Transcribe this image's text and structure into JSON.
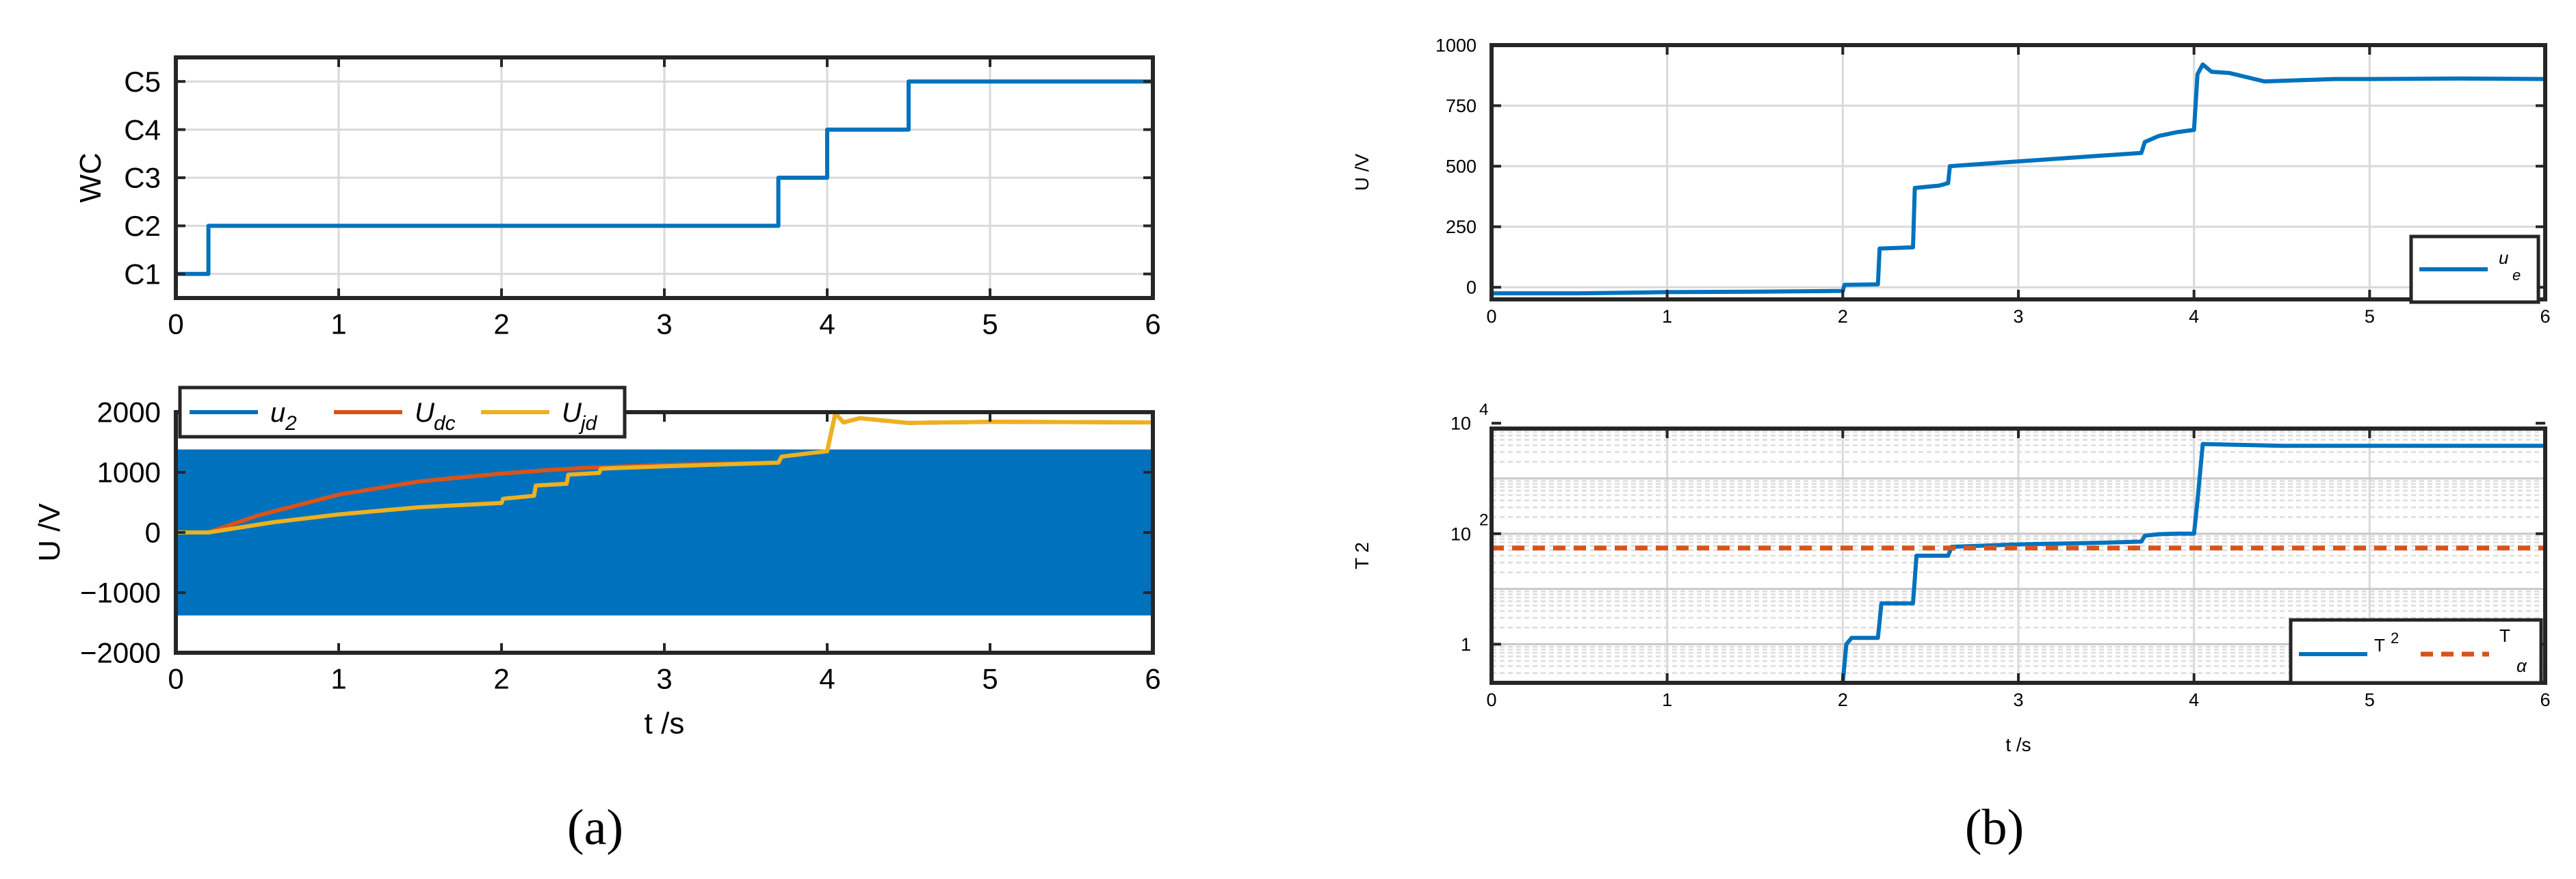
{
  "panel_labels": [
    "(a)",
    "(b)"
  ],
  "chart_data": [
    {
      "id": "a1",
      "type": "line",
      "xlabel": "",
      "ylabel": "WC",
      "xlim": [
        0,
        6
      ],
      "ylim": [
        0.5,
        5.5
      ],
      "x_ticks": [
        "0",
        "1",
        "2",
        "3",
        "4",
        "5",
        "6"
      ],
      "y_ticks": [
        1,
        2,
        3,
        4,
        5
      ],
      "y_tick_labels": [
        "C1",
        "C2",
        "C3",
        "C4",
        "C5"
      ],
      "grid": true,
      "series": [
        {
          "color": "#0072BD",
          "x": [
            0,
            0.2,
            0.2,
            3.7,
            3.7,
            4.0,
            4.0,
            4.5,
            4.5,
            6.0
          ],
          "y": [
            1,
            1,
            2,
            2,
            3,
            3,
            4,
            4,
            5,
            5
          ]
        }
      ]
    },
    {
      "id": "a2",
      "type": "line",
      "xlabel": "t /s",
      "ylabel": "U /V",
      "xlim": [
        0,
        6
      ],
      "ylim": [
        -2000,
        2000
      ],
      "x_ticks": [
        "0",
        "1",
        "2",
        "3",
        "4",
        "5",
        "6"
      ],
      "y_ticks": [
        -2000,
        -1000,
        0,
        1000,
        2000
      ],
      "y_tick_labels": [
        "−2000",
        "−1000",
        "0",
        "1000",
        "2000"
      ],
      "grid": false,
      "legend": {
        "placement": "top-left",
        "orientation": "horizontal",
        "entries": [
          {
            "main": "u",
            "sub": "2",
            "color": "#0072BD"
          },
          {
            "main": "U",
            "sub": "dc",
            "color": "#D95319"
          },
          {
            "main": "U",
            "sub": "jd",
            "color": "#EDB120"
          }
        ]
      },
      "band": {
        "series": "u2",
        "color": "#0072BD",
        "x": [
          0,
          6
        ],
        "amplitude": 1380
      },
      "series": [
        {
          "name": "U_dc",
          "color": "#D95319",
          "x": [
            0,
            0.2,
            0.5,
            1.0,
            1.5,
            2.0,
            2.3,
            2.5,
            3.0,
            3.7,
            3.72,
            3.9,
            4.0,
            4.05,
            4.1,
            4.2,
            4.5,
            5.0,
            6.0
          ],
          "y": [
            0,
            0,
            280,
            630,
            850,
            980,
            1040,
            1070,
            1120,
            1160,
            1260,
            1320,
            1350,
            1980,
            1830,
            1900,
            1820,
            1840,
            1830
          ]
        },
        {
          "name": "U_jd",
          "color": "#EDB120",
          "x": [
            0,
            0.2,
            0.6,
            1.0,
            1.5,
            2.0,
            2.01,
            2.2,
            2.21,
            2.4,
            2.41,
            2.6,
            2.61,
            3.0,
            3.7,
            3.72,
            3.9,
            4.0,
            4.05,
            4.1,
            4.2,
            4.5,
            5.0,
            6.0
          ],
          "y": [
            0,
            0,
            170,
            300,
            420,
            490,
            560,
            610,
            780,
            810,
            960,
            990,
            1060,
            1100,
            1160,
            1260,
            1320,
            1350,
            1980,
            1830,
            1900,
            1820,
            1840,
            1830
          ]
        }
      ]
    },
    {
      "id": "b1",
      "type": "line",
      "xlabel": "",
      "ylabel": "U /V",
      "xlim": [
        0,
        6
      ],
      "ylim": [
        -50,
        1000
      ],
      "x_ticks": [
        "0",
        "1",
        "2",
        "3",
        "4",
        "5",
        "6"
      ],
      "y_ticks": [
        0,
        250,
        500,
        750,
        1000
      ],
      "y_tick_labels": [
        "0",
        "250",
        "500",
        "750",
        "1000"
      ],
      "grid": true,
      "legend": {
        "placement": "bottom-right",
        "entries": [
          {
            "main": "u",
            "sub": "e",
            "color": "#0072BD"
          }
        ]
      },
      "series": [
        {
          "name": "u_e",
          "color": "#0072BD",
          "x": [
            0,
            0.5,
            1.0,
            1.5,
            2.0,
            2.01,
            2.2,
            2.21,
            2.4,
            2.41,
            2.55,
            2.6,
            2.61,
            3.0,
            3.5,
            3.7,
            3.72,
            3.8,
            3.9,
            4.0,
            4.02,
            4.05,
            4.1,
            4.2,
            4.4,
            4.6,
            4.8,
            5.0,
            5.5,
            6.0
          ],
          "y": [
            -25,
            -25,
            -20,
            -18,
            -15,
            10,
            12,
            160,
            165,
            410,
            420,
            430,
            500,
            520,
            545,
            555,
            600,
            625,
            640,
            650,
            880,
            920,
            890,
            885,
            850,
            855,
            860,
            860,
            862,
            860
          ]
        }
      ]
    },
    {
      "id": "b2",
      "type": "line",
      "xlabel": "t /s",
      "ylabel": "T 2",
      "xlim": [
        0,
        6
      ],
      "ylim": [
        0.2,
        8000
      ],
      "y_scale": "log",
      "x_ticks": [
        "0",
        "1",
        "2",
        "3",
        "4",
        "5",
        "6"
      ],
      "y_ticks": [
        1,
        100,
        10000
      ],
      "y_tick_labels": [
        {
          "base": "1",
          "exp": ""
        },
        {
          "base": "10",
          "exp": "2"
        },
        {
          "base": "10",
          "exp": "4"
        }
      ],
      "grid": true,
      "legend": {
        "placement": "bottom-right",
        "orientation": "horizontal",
        "entries": [
          {
            "main": "T",
            "sup": "2",
            "color": "#0072BD",
            "dash": false
          },
          {
            "main": "T",
            "sub": "α",
            "color": "#D95319",
            "dash": true
          }
        ]
      },
      "series": [
        {
          "name": "T^2",
          "color": "#0072BD",
          "x": [
            2.0,
            2.02,
            2.05,
            2.2,
            2.22,
            2.4,
            2.42,
            2.6,
            2.62,
            3.0,
            3.5,
            3.7,
            3.72,
            3.8,
            3.9,
            4.0,
            4.02,
            4.05,
            4.5,
            5.0,
            6.0
          ],
          "y": [
            0.2,
            1.0,
            1.3,
            1.3,
            5.5,
            5.5,
            40,
            40,
            58,
            64,
            69,
            72,
            92,
            98,
            100,
            100,
            400,
            4200,
            3900,
            3900,
            3900
          ]
        },
        {
          "name": "T_alpha",
          "color": "#D95319",
          "dash": true,
          "x": [
            0,
            6
          ],
          "y": [
            55,
            55
          ]
        }
      ]
    }
  ]
}
